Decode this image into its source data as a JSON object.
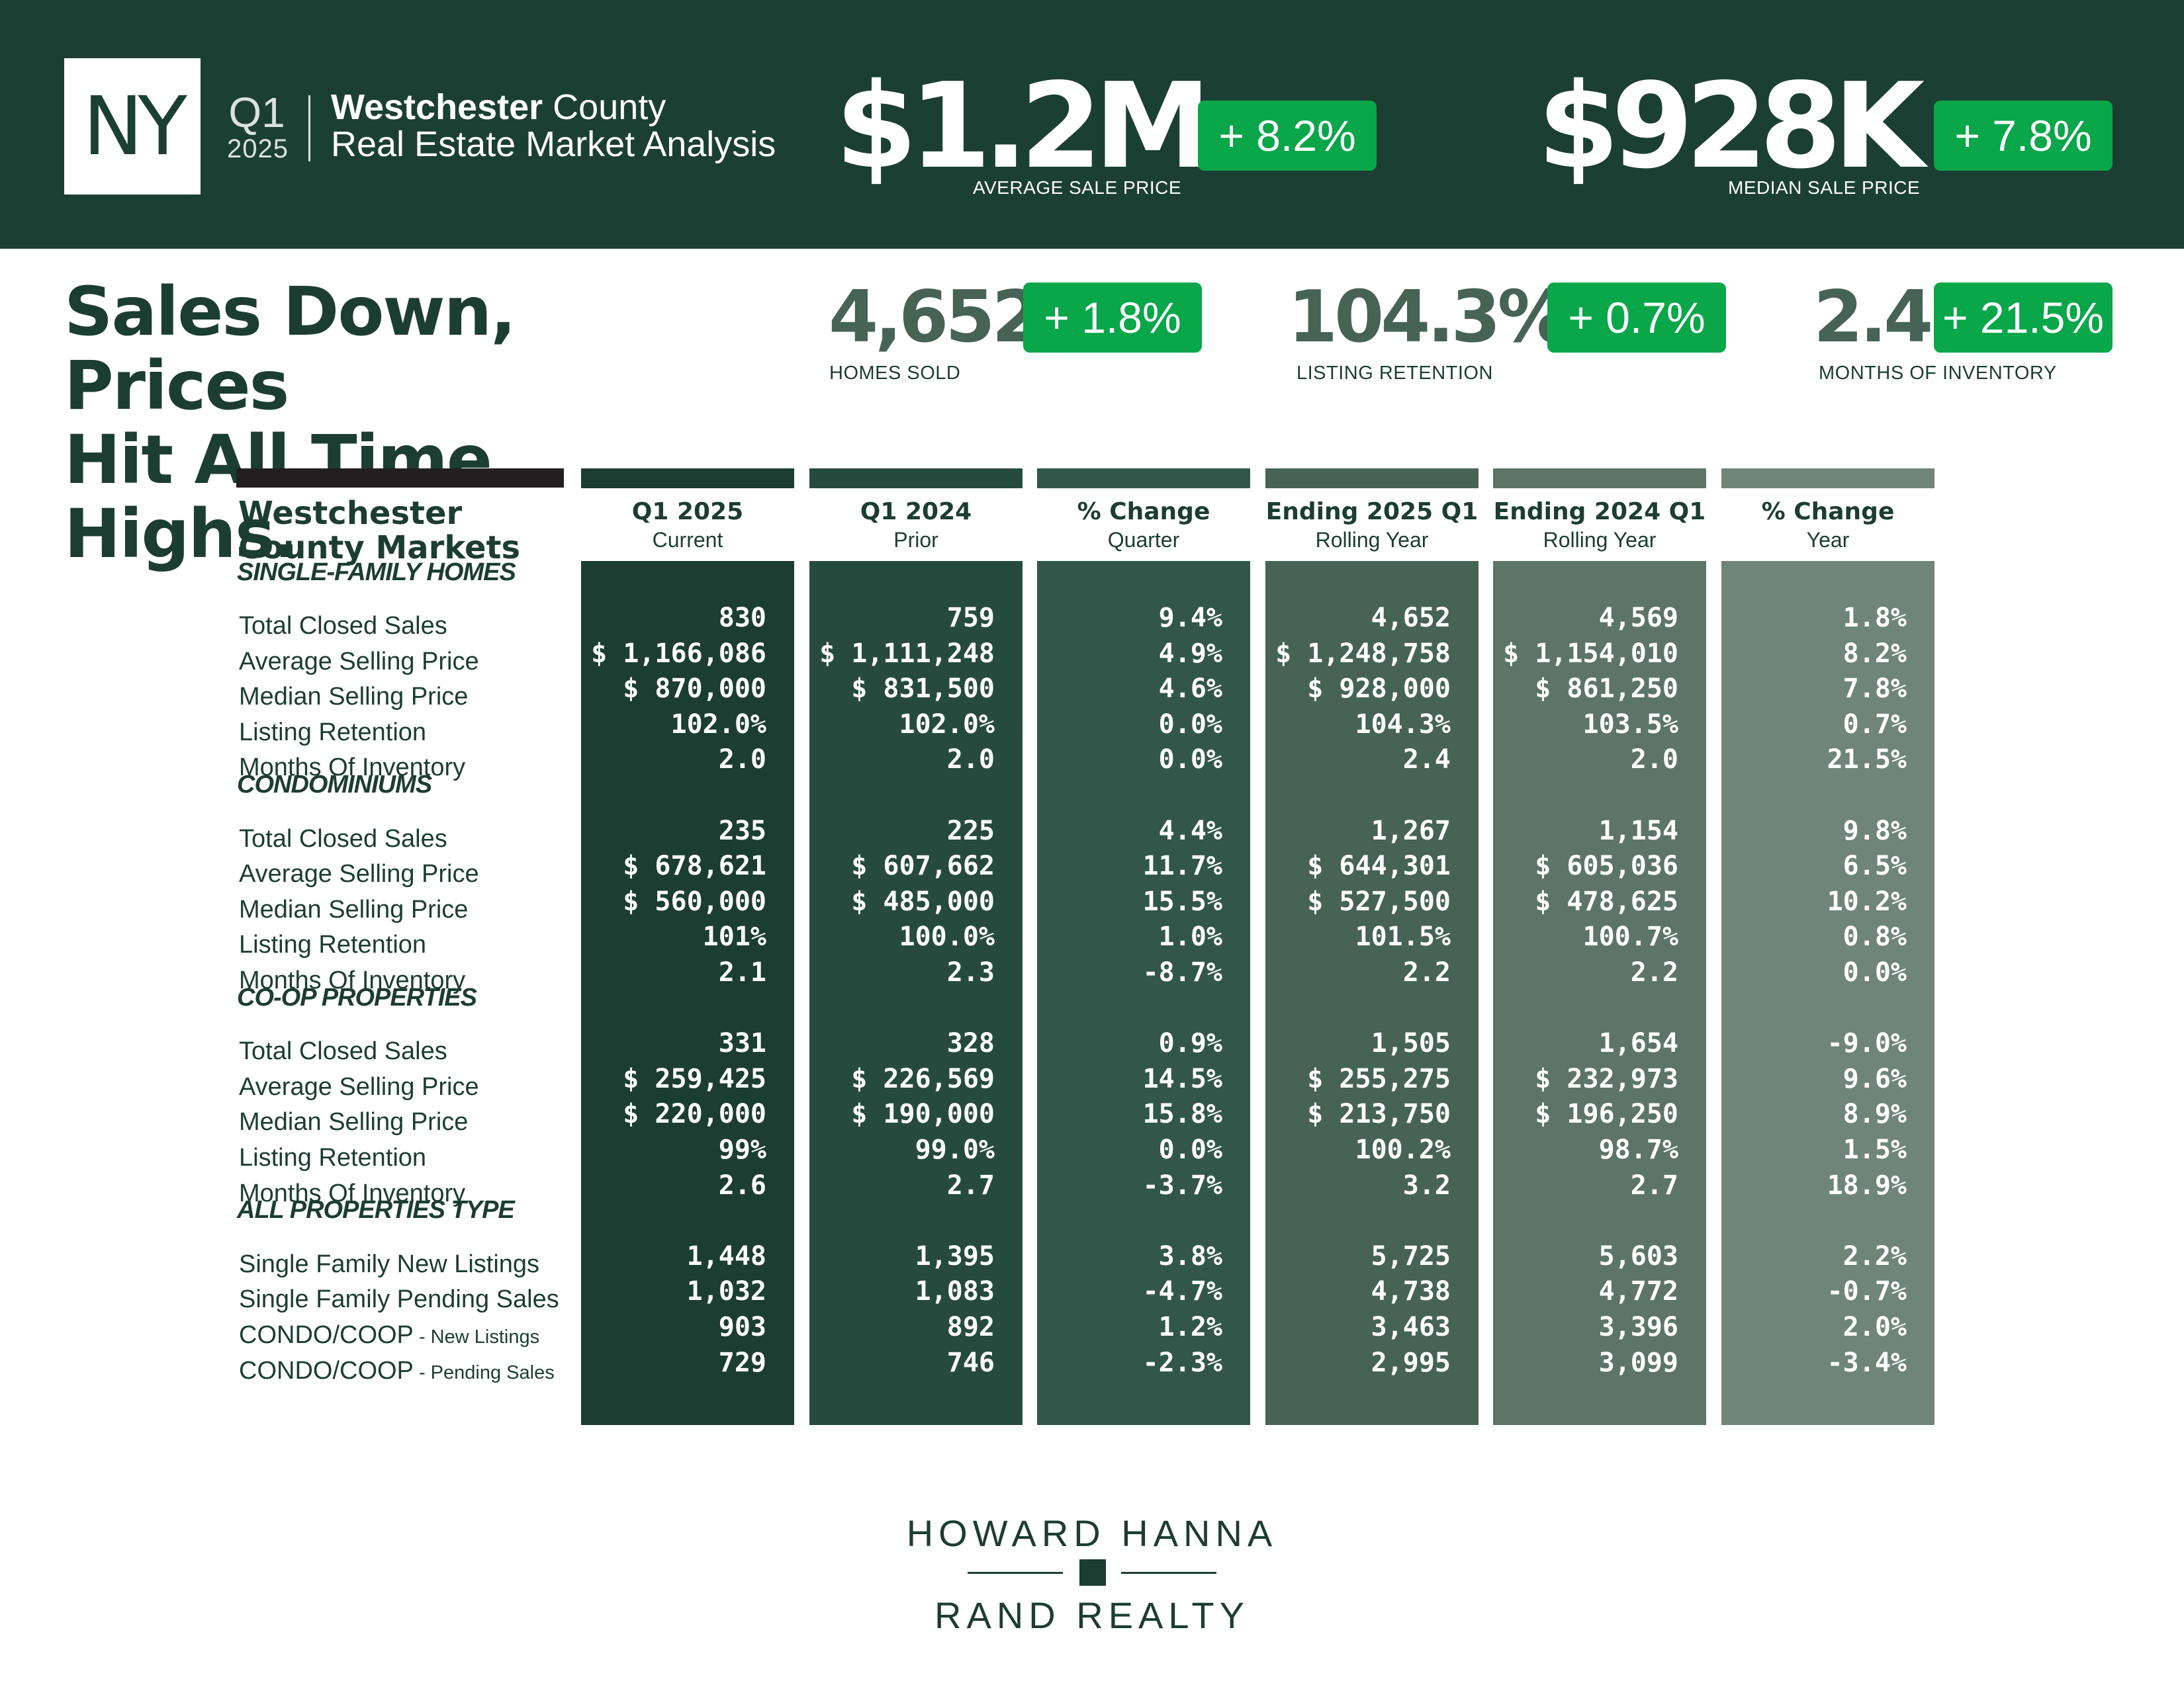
{
  "header": {
    "state": "NY",
    "quarter": "Q1",
    "year": "2025",
    "county_bold": "Westchester",
    "county_rest": " County",
    "subtitle": "Real Estate Market Analysis",
    "avg_sale_price": {
      "value": "$1.2M",
      "change": "+ 8.2%",
      "label": "AVERAGE SALE PRICE"
    },
    "median_sale_price": {
      "value": "$928K",
      "change": "+ 7.8%",
      "label": "MEDIAN SALE PRICE"
    }
  },
  "headline": {
    "line1": "Sales Down, Prices",
    "line2": "Hit All Time Highs."
  },
  "stats": [
    {
      "value": "4,652",
      "change": "+ 1.8%",
      "label": "HOMES SOLD"
    },
    {
      "value": "104.3%",
      "change": "+ 0.7%",
      "label": "LISTING RETENTION"
    },
    {
      "value": "2.4",
      "change": "+ 21.5%",
      "label": "MONTHS OF INVENTORY"
    }
  ],
  "table": {
    "title_line1": "Westchester",
    "title_line2": "County Markets",
    "columns": [
      {
        "title": "Q1 2025",
        "subtitle": "Current",
        "color": "#1c3d32"
      },
      {
        "title": "Q1 2024",
        "subtitle": "Prior",
        "color": "#274a3e"
      },
      {
        "title": "% Change",
        "subtitle": "Quarter",
        "color": "#32574a"
      },
      {
        "title": "Ending 2025 Q1",
        "subtitle": "Rolling Year",
        "color": "#466356"
      },
      {
        "title": "Ending 2024 Q1",
        "subtitle": "Rolling Year",
        "color": "#5c7568"
      },
      {
        "title": "% Change",
        "subtitle": "Year",
        "color": "#6f8579"
      }
    ],
    "sections": [
      {
        "name": "SINGLE-FAMILY HOMES",
        "rows": [
          {
            "label": "Total Closed Sales",
            "values": [
              "830",
              "759",
              "9.4%",
              "4,652",
              "4,569",
              "1.8%"
            ]
          },
          {
            "label": "Average Selling Price",
            "values": [
              "$ 1,166,086",
              "$ 1,111,248",
              "4.9%",
              "$ 1,248,758",
              "$ 1,154,010",
              "8.2%"
            ]
          },
          {
            "label": "Median Selling Price",
            "values": [
              "$ 870,000",
              "$ 831,500",
              "4.6%",
              "$ 928,000",
              "$ 861,250",
              "7.8%"
            ]
          },
          {
            "label": "Listing Retention",
            "values": [
              "102.0%",
              "102.0%",
              "0.0%",
              "104.3%",
              "103.5%",
              "0.7%"
            ]
          },
          {
            "label": "Months Of Inventory",
            "values": [
              "2.0",
              "2.0",
              "0.0%",
              "2.4",
              "2.0",
              "21.5%"
            ]
          }
        ]
      },
      {
        "name": "CONDOMINIUMS",
        "rows": [
          {
            "label": "Total Closed Sales",
            "values": [
              "235",
              "225",
              "4.4%",
              "1,267",
              "1,154",
              "9.8%"
            ]
          },
          {
            "label": "Average Selling Price",
            "values": [
              "$ 678,621",
              "$ 607,662",
              "11.7%",
              "$ 644,301",
              "$ 605,036",
              "6.5%"
            ]
          },
          {
            "label": "Median Selling Price",
            "values": [
              "$ 560,000",
              "$ 485,000",
              "15.5%",
              "$ 527,500",
              "$ 478,625",
              "10.2%"
            ]
          },
          {
            "label": "Listing Retention",
            "values": [
              "101%",
              "100.0%",
              "1.0%",
              "101.5%",
              "100.7%",
              "0.8%"
            ]
          },
          {
            "label": "Months Of Inventory",
            "values": [
              "2.1",
              "2.3",
              "-8.7%",
              "2.2",
              "2.2",
              "0.0%"
            ]
          }
        ]
      },
      {
        "name": "CO-OP PROPERTIES",
        "rows": [
          {
            "label": "Total Closed Sales",
            "values": [
              "331",
              "328",
              "0.9%",
              "1,505",
              "1,654",
              "-9.0%"
            ]
          },
          {
            "label": "Average Selling Price",
            "values": [
              "$ 259,425",
              "$ 226,569",
              "14.5%",
              "$ 255,275",
              "$ 232,973",
              "9.6%"
            ]
          },
          {
            "label": "Median Selling Price",
            "values": [
              "$ 220,000",
              "$ 190,000",
              "15.8%",
              "$ 213,750",
              "$ 196,250",
              "8.9%"
            ]
          },
          {
            "label": "Listing Retention",
            "values": [
              "99%",
              "99.0%",
              "0.0%",
              "100.2%",
              "98.7%",
              "1.5%"
            ]
          },
          {
            "label": "Months Of Inventory",
            "values": [
              "2.6",
              "2.7",
              "-3.7%",
              "3.2",
              "2.7",
              "18.9%"
            ]
          }
        ]
      },
      {
        "name": "ALL PROPERTIES TYPE",
        "rows": [
          {
            "label": "Single Family New Listings",
            "values": [
              "1,448",
              "1,395",
              "3.8%",
              "5,725",
              "5,603",
              "2.2%"
            ]
          },
          {
            "label": "Single Family Pending Sales",
            "values": [
              "1,032",
              "1,083",
              "-4.7%",
              "4,738",
              "4,772",
              "-0.7%"
            ]
          },
          {
            "label": "CONDO/COOP",
            "label_small": " - New Listings",
            "values": [
              "903",
              "892",
              "1.2%",
              "3,463",
              "3,396",
              "2.0%"
            ]
          },
          {
            "label": "CONDO/COOP",
            "label_small": " - Pending Sales",
            "values": [
              "729",
              "746",
              "-2.3%",
              "2,995",
              "3,099",
              "-3.4%"
            ]
          }
        ]
      }
    ]
  },
  "footer": {
    "logo_line1": "HOWARD HANNA",
    "logo_line2": "RAND REALTY"
  },
  "colors": {
    "band": "#1c3f33",
    "accent_green": "#0aa64a",
    "text_dark": "#1c3d32"
  }
}
